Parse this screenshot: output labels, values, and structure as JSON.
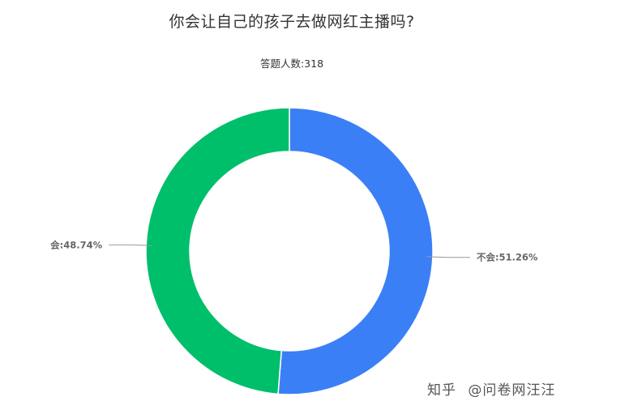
{
  "chart_data": {
    "type": "pie",
    "title": "你会让自己的孩子去做网红主播吗?",
    "respondents_label": "答题人数:",
    "respondents_count": "318",
    "categories": [
      "不会",
      "会"
    ],
    "values": [
      51.26,
      48.74
    ],
    "colors": [
      "#3b7ff6",
      "#00bf6a"
    ],
    "display_labels": [
      "不会:51.26%",
      "会:48.74%"
    ]
  },
  "watermark": {
    "platform": "知乎",
    "author": "@问卷网汪汪"
  }
}
